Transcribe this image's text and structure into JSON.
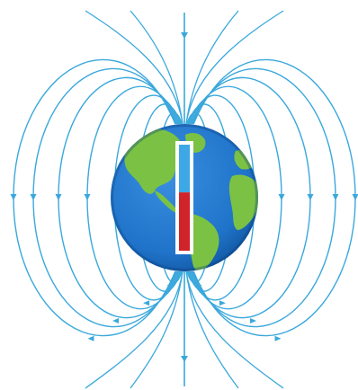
{
  "figure": {
    "subject": "earth-magnetic-field",
    "colors": {
      "background": "#ffffff",
      "field_line": "#3aa8dc",
      "ocean": "#1f73c9",
      "ocean_dark": "#0f4f97",
      "land": "#7bc244",
      "land_dark": "#4f9a2d",
      "magnet_north": "#3ea7e6",
      "magnet_south": "#d1232a",
      "magnet_outline": "#ffffff"
    },
    "field_lines": {
      "count_per_side": 7,
      "arrow_direction": "down-along-axis"
    },
    "magnet": {
      "north_fraction": 0.45,
      "south_fraction": 0.55
    }
  }
}
